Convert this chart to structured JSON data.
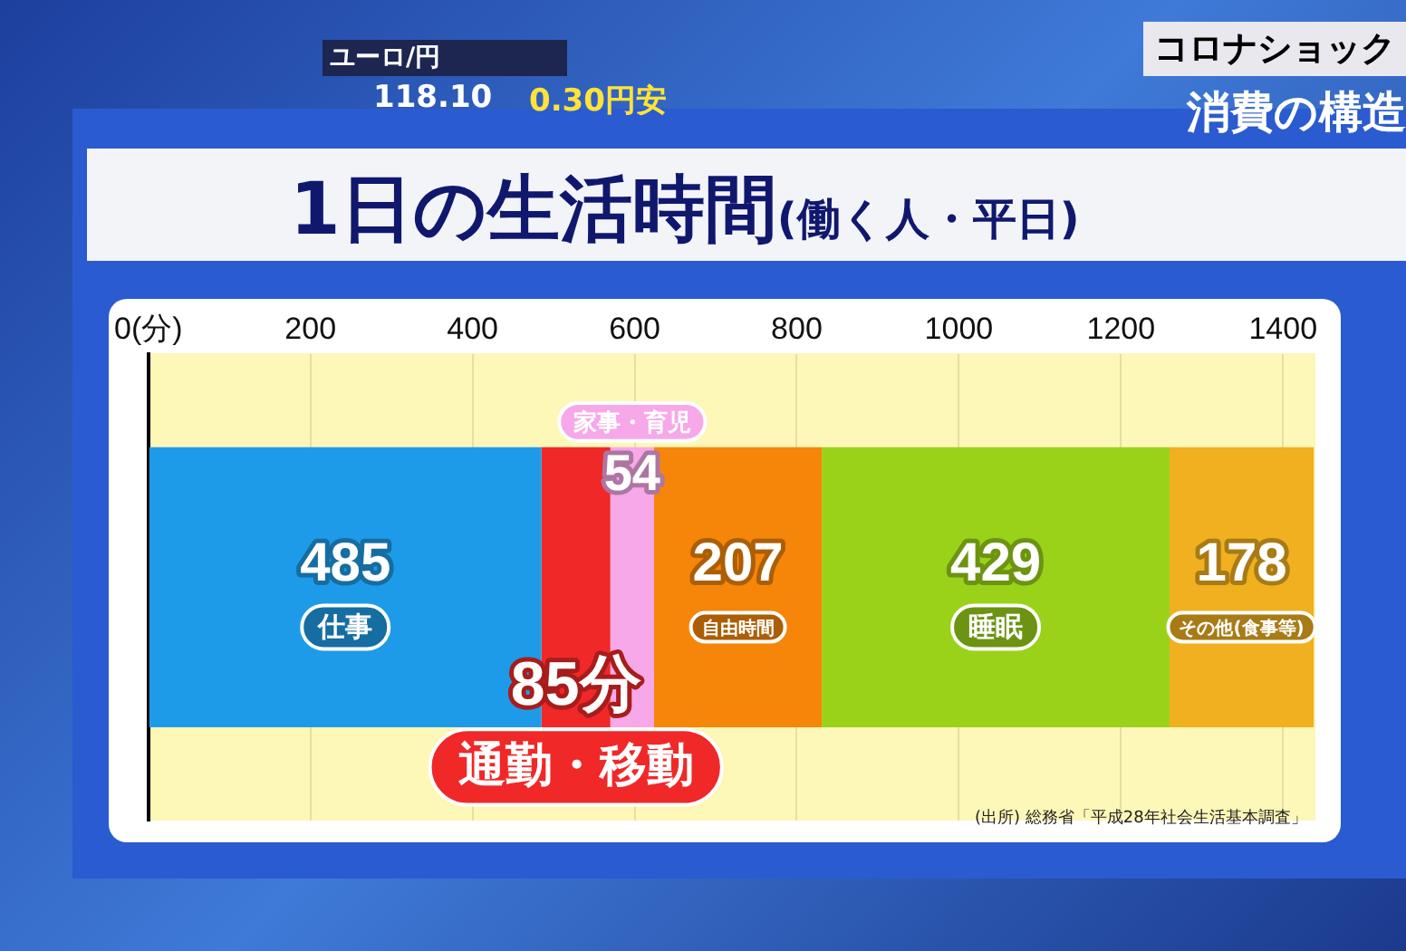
{
  "chart_data": {
    "type": "bar",
    "orientation": "horizontal",
    "stacked": true,
    "title": "1日の生活時間",
    "subtitle": "(働く人・平日)",
    "categories": [
      null
    ],
    "series": [
      {
        "name": "仕事",
        "color": "#1e9be8",
        "values": [
          485
        ],
        "value_labels": [
          "485"
        ]
      },
      {
        "name": "通勤・移動",
        "color": "#f02828",
        "values": [
          85
        ],
        "value_labels": [
          "85分"
        ]
      },
      {
        "name": "家事・育児",
        "color": "#f7a8e8",
        "values": [
          54
        ],
        "value_labels": [
          "54"
        ]
      },
      {
        "name": "自由時間",
        "color": "#f5860a",
        "values": [
          207
        ],
        "value_labels": [
          "207"
        ]
      },
      {
        "name": "睡眠",
        "color": "#9ad21a",
        "values": [
          429
        ],
        "value_labels": [
          "429"
        ]
      },
      {
        "name": "その他(食事等)",
        "color": "#f0b020",
        "values": [
          178
        ],
        "value_labels": [
          "178"
        ]
      }
    ],
    "xlim": [
      0,
      1440
    ],
    "xticks": [
      {
        "value": 0,
        "label": "0(分)"
      },
      200,
      400,
      600,
      800,
      1000,
      1200,
      1400
    ],
    "grid": "x",
    "legend": false,
    "tick_labels": "x",
    "annotations": [
      "コロナショック",
      "消費の構造",
      "ユーロ/円",
      "118.10",
      "0.30円安",
      "(出所) 総務省「平成28年社会生活基本調査」"
    ]
  }
}
